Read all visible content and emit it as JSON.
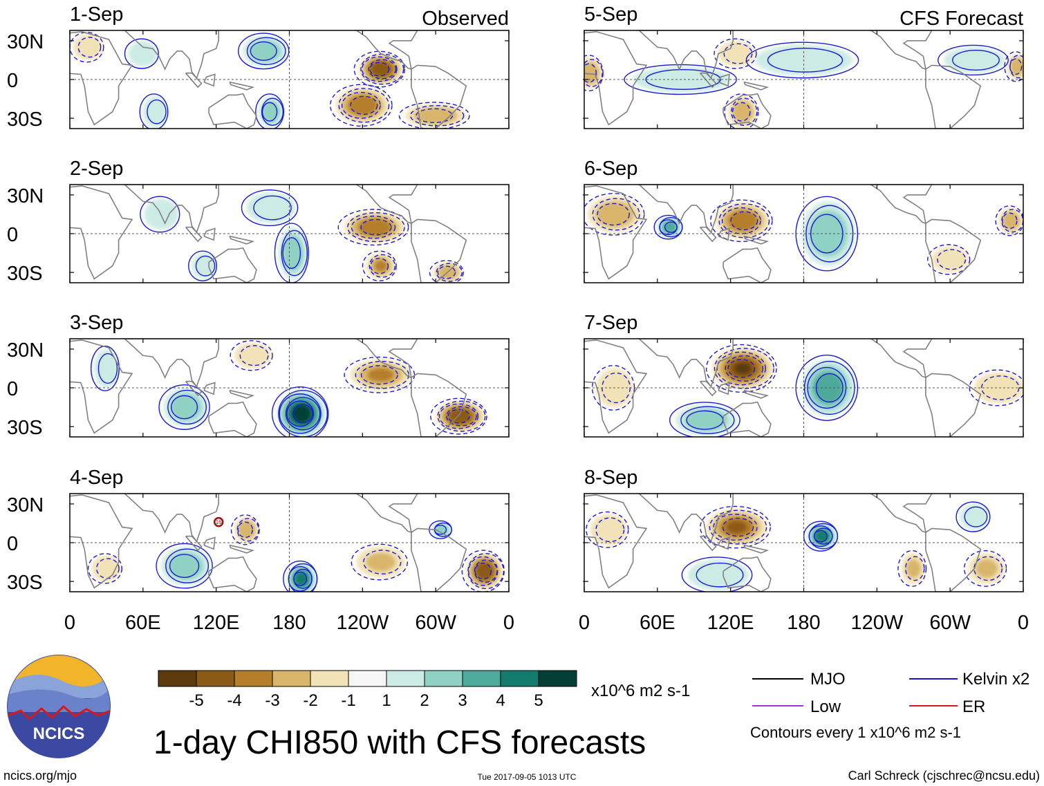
{
  "chart_data": {
    "type": "heatmap",
    "title": "1-day CHI850 with CFS forecasts",
    "units": "x10^6 m2 s-1",
    "lat_tick_labels": [
      "30N",
      "0",
      "30S"
    ],
    "lon_tick_labels": [
      "0",
      "60E",
      "120E",
      "180",
      "120W",
      "60W",
      "0"
    ],
    "lat_ticks": [
      30,
      0,
      -30
    ],
    "lon_ticks": [
      0,
      60,
      120,
      180,
      240,
      300,
      360
    ],
    "xlim": [
      0,
      360
    ],
    "ylim": [
      -38,
      38
    ],
    "observed_label": "Observed",
    "forecast_label": "CFS Forecast",
    "panels": [
      {
        "date": "1-Sep",
        "group": "observed",
        "column": 0,
        "row": 0,
        "anomalies": [
          {
            "lon": 255,
            "lat": 8,
            "value": -4.5,
            "rx": 18,
            "ry": 12
          },
          {
            "lon": 240,
            "lat": -20,
            "value": -3.5,
            "rx": 22,
            "ry": 14
          },
          {
            "lon": 300,
            "lat": -28,
            "value": -2.5,
            "rx": 25,
            "ry": 9
          },
          {
            "lon": 160,
            "lat": 22,
            "value": 2.5,
            "rx": 18,
            "ry": 12
          },
          {
            "lon": 165,
            "lat": -25,
            "value": 2.5,
            "rx": 10,
            "ry": 12
          },
          {
            "lon": 70,
            "lat": -25,
            "value": 1.5,
            "rx": 10,
            "ry": 12
          },
          {
            "lon": 60,
            "lat": 20,
            "value": 1.2,
            "rx": 12,
            "ry": 10
          },
          {
            "lon": 15,
            "lat": 25,
            "value": -1.5,
            "rx": 12,
            "ry": 10
          }
        ]
      },
      {
        "date": "2-Sep",
        "group": "observed",
        "column": 0,
        "row": 1,
        "anomalies": [
          {
            "lon": 250,
            "lat": 5,
            "value": -3.5,
            "rx": 25,
            "ry": 12
          },
          {
            "lon": 255,
            "lat": -25,
            "value": -3.0,
            "rx": 12,
            "ry": 10
          },
          {
            "lon": 310,
            "lat": -30,
            "value": -2.5,
            "rx": 12,
            "ry": 8
          },
          {
            "lon": 183,
            "lat": -15,
            "value": 3.0,
            "rx": 12,
            "ry": 20
          },
          {
            "lon": 165,
            "lat": 20,
            "value": 2.0,
            "rx": 20,
            "ry": 12
          },
          {
            "lon": 75,
            "lat": 15,
            "value": 1.2,
            "rx": 14,
            "ry": 12
          },
          {
            "lon": 110,
            "lat": -25,
            "value": 1.5,
            "rx": 10,
            "ry": 10
          }
        ]
      },
      {
        "date": "3-Sep",
        "group": "observed",
        "column": 0,
        "row": 2,
        "anomalies": [
          {
            "lon": 190,
            "lat": -20,
            "value": 5.5,
            "rx": 20,
            "ry": 18
          },
          {
            "lon": 95,
            "lat": -15,
            "value": 3.0,
            "rx": 18,
            "ry": 15
          },
          {
            "lon": 30,
            "lat": 15,
            "value": 1.5,
            "rx": 10,
            "ry": 15
          },
          {
            "lon": 255,
            "lat": 10,
            "value": -3.0,
            "rx": 25,
            "ry": 12
          },
          {
            "lon": 320,
            "lat": -22,
            "value": -4.5,
            "rx": 20,
            "ry": 12
          },
          {
            "lon": 150,
            "lat": 25,
            "value": -1.5,
            "rx": 15,
            "ry": 10
          }
        ]
      },
      {
        "date": "4-Sep",
        "group": "observed",
        "column": 0,
        "row": 3,
        "anomalies": [
          {
            "lon": 190,
            "lat": -28,
            "value": 4.5,
            "rx": 12,
            "ry": 12
          },
          {
            "lon": 95,
            "lat": -18,
            "value": 2.5,
            "rx": 20,
            "ry": 15
          },
          {
            "lon": 340,
            "lat": -22,
            "value": -4.5,
            "rx": 15,
            "ry": 14
          },
          {
            "lon": 145,
            "lat": 10,
            "value": -2.5,
            "rx": 10,
            "ry": 10
          },
          {
            "lon": 255,
            "lat": -15,
            "value": -2.0,
            "rx": 20,
            "ry": 12
          },
          {
            "lon": 305,
            "lat": 10,
            "value": 3.0,
            "rx": 8,
            "ry": 6
          },
          {
            "lon": 30,
            "lat": -20,
            "value": -1.5,
            "rx": 12,
            "ry": 10
          }
        ],
        "annotations": [
          {
            "lon": 122,
            "lat": 16,
            "label": "16"
          }
        ]
      },
      {
        "date": "5-Sep",
        "group": "forecast",
        "column": 1,
        "row": 0,
        "anomalies": [
          {
            "lon": 180,
            "lat": 15,
            "value": 2.0,
            "rx": 40,
            "ry": 12
          },
          {
            "lon": 80,
            "lat": 0,
            "value": 2.0,
            "rx": 40,
            "ry": 10
          },
          {
            "lon": 320,
            "lat": 15,
            "value": 2.0,
            "rx": 25,
            "ry": 10
          },
          {
            "lon": 130,
            "lat": -25,
            "value": -2.5,
            "rx": 12,
            "ry": 12
          },
          {
            "lon": 5,
            "lat": 5,
            "value": -2.5,
            "rx": 10,
            "ry": 12
          },
          {
            "lon": 355,
            "lat": 10,
            "value": -2.5,
            "rx": 8,
            "ry": 10
          },
          {
            "lon": 125,
            "lat": 20,
            "value": -1.5,
            "rx": 15,
            "ry": 10
          }
        ]
      },
      {
        "date": "6-Sep",
        "group": "forecast",
        "column": 1,
        "row": 1,
        "anomalies": [
          {
            "lon": 130,
            "lat": 10,
            "value": -3.5,
            "rx": 22,
            "ry": 14
          },
          {
            "lon": 25,
            "lat": 15,
            "value": -2.5,
            "rx": 22,
            "ry": 14
          },
          {
            "lon": 350,
            "lat": 10,
            "value": -2.5,
            "rx": 10,
            "ry": 10
          },
          {
            "lon": 200,
            "lat": 0,
            "value": 3.0,
            "rx": 22,
            "ry": 25
          },
          {
            "lon": 70,
            "lat": 5,
            "value": 3.5,
            "rx": 10,
            "ry": 8
          },
          {
            "lon": 300,
            "lat": -20,
            "value": -1.5,
            "rx": 15,
            "ry": 10
          }
        ]
      },
      {
        "date": "7-Sep",
        "group": "forecast",
        "column": 1,
        "row": 2,
        "anomalies": [
          {
            "lon": 130,
            "lat": 15,
            "value": -5.0,
            "rx": 25,
            "ry": 16
          },
          {
            "lon": 200,
            "lat": 0,
            "value": 3.5,
            "rx": 22,
            "ry": 22
          },
          {
            "lon": 100,
            "lat": -25,
            "value": 2.5,
            "rx": 25,
            "ry": 12
          },
          {
            "lon": 25,
            "lat": 0,
            "value": -1.5,
            "rx": 15,
            "ry": 15
          },
          {
            "lon": 340,
            "lat": 0,
            "value": -1.5,
            "rx": 20,
            "ry": 12
          }
        ]
      },
      {
        "date": "8-Sep",
        "group": "forecast",
        "column": 1,
        "row": 3,
        "anomalies": [
          {
            "lon": 125,
            "lat": 12,
            "value": -4.0,
            "rx": 25,
            "ry": 14
          },
          {
            "lon": 195,
            "lat": 5,
            "value": 4.5,
            "rx": 12,
            "ry": 10
          },
          {
            "lon": 110,
            "lat": -25,
            "value": 2.0,
            "rx": 25,
            "ry": 12
          },
          {
            "lon": 330,
            "lat": -20,
            "value": -2.0,
            "rx": 15,
            "ry": 12
          },
          {
            "lon": 270,
            "lat": -20,
            "value": -2.0,
            "rx": 10,
            "ry": 12
          },
          {
            "lon": 320,
            "lat": 20,
            "value": 1.5,
            "rx": 12,
            "ry": 10
          },
          {
            "lon": 20,
            "lat": 10,
            "value": -1.5,
            "rx": 15,
            "ry": 12
          }
        ]
      }
    ]
  },
  "colorbar": {
    "colors": [
      "#5c3a0b",
      "#8b5a16",
      "#b47e2b",
      "#d8b56a",
      "#f2e2b8",
      "#f6f6f6",
      "#cdebe5",
      "#8fd2c4",
      "#4eaa9a",
      "#137a6e",
      "#033f35"
    ],
    "labels": [
      "-5",
      "-4",
      "-3",
      "-2",
      "-1",
      "1",
      "2",
      "3",
      "4",
      "5"
    ],
    "units": "x10^6 m2 s-1"
  },
  "legend": {
    "items": [
      {
        "label": "MJO",
        "color": "#000000"
      },
      {
        "label": "Kelvin x2",
        "color": "#1212d8"
      },
      {
        "label": "Low",
        "color": "#9b30e6"
      },
      {
        "label": "ER",
        "color": "#d81818"
      }
    ],
    "note": "Contours every 1 x10^6 m2 s-1"
  },
  "logo": {
    "text": "NCICS"
  },
  "footer": {
    "left": "ncics.org/mjo",
    "center": "Tue 2017-09-05 1013 UTC",
    "right": "Carl Schreck (cjschrec@ncsu.edu)"
  },
  "colors": {
    "contour": "#1a1ad6",
    "land": "#808080",
    "axis": "#000000"
  }
}
